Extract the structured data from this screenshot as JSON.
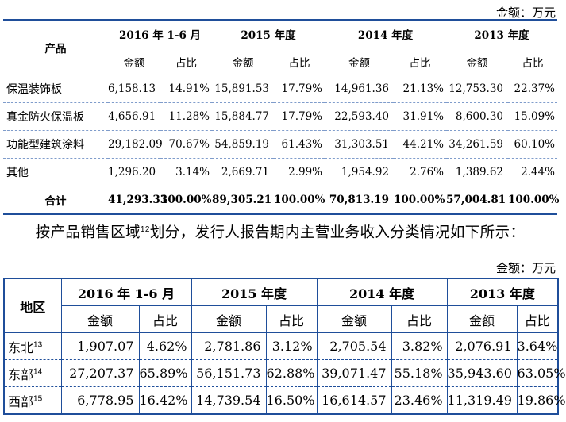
{
  "table1": {
    "unit": "金额：万元",
    "product_header": "产品",
    "periods": [
      "2016 年 1-6 月",
      "2015 年度",
      "2014 年度",
      "2013 年度"
    ],
    "sub_amount": "金额",
    "sub_ratio": "占比",
    "rows": [
      {
        "name": "保温装饰板",
        "v": [
          "6,158.13",
          "14.91%",
          "15,891.53",
          "17.79%",
          "14,961.36",
          "21.13%",
          "12,753.30",
          "22.37%"
        ]
      },
      {
        "name": "真金防火保温板",
        "v": [
          "4,656.91",
          "11.28%",
          "15,884.77",
          "17.79%",
          "22,593.40",
          "31.91%",
          "8,600.30",
          "15.09%"
        ]
      },
      {
        "name": "功能型建筑涂料",
        "v": [
          "29,182.09",
          "70.67%",
          "54,859.19",
          "61.43%",
          "31,303.51",
          "44.21%",
          "34,261.59",
          "60.10%"
        ]
      },
      {
        "name": "其他",
        "v": [
          "1,296.20",
          "3.14%",
          "2,669.71",
          "2.99%",
          "1,954.92",
          "2.76%",
          "1,389.62",
          "2.44%"
        ]
      }
    ],
    "total": {
      "name": "合计",
      "v": [
        "41,293.33",
        "100.00%",
        "89,305.21",
        "100.00%",
        "70,813.19",
        "100.00%",
        "57,004.81",
        "100.00%"
      ]
    }
  },
  "paragraph": {
    "text_before": "按产品销售区域",
    "footnote": "12",
    "text_after": "划分，发行人报告期内主营业务收入分类情况如下所示："
  },
  "table2": {
    "unit": "金额：万元",
    "region_header": "地区",
    "periods": [
      "2016 年 1-6 月",
      "2015 年度",
      "2014 年度",
      "2013 年度"
    ],
    "sub_amount": "金额",
    "sub_ratio": "占比",
    "rows": [
      {
        "name": "东北",
        "fn": "13",
        "v": [
          "1,907.07",
          "4.62%",
          "2,781.86",
          "3.12%",
          "2,705.54",
          "3.82%",
          "2,076.91",
          "3.64%"
        ]
      },
      {
        "name": "东部",
        "fn": "14",
        "v": [
          "27,207.37",
          "65.89%",
          "56,151.73",
          "62.88%",
          "39,071.47",
          "55.18%",
          "35,943.60",
          "63.05%"
        ]
      },
      {
        "name": "西部",
        "fn": "15",
        "v": [
          "6,778.95",
          "16.42%",
          "14,739.54",
          "16.50%",
          "16,614.57",
          "23.46%",
          "11,319.49",
          "19.86%"
        ]
      }
    ]
  }
}
